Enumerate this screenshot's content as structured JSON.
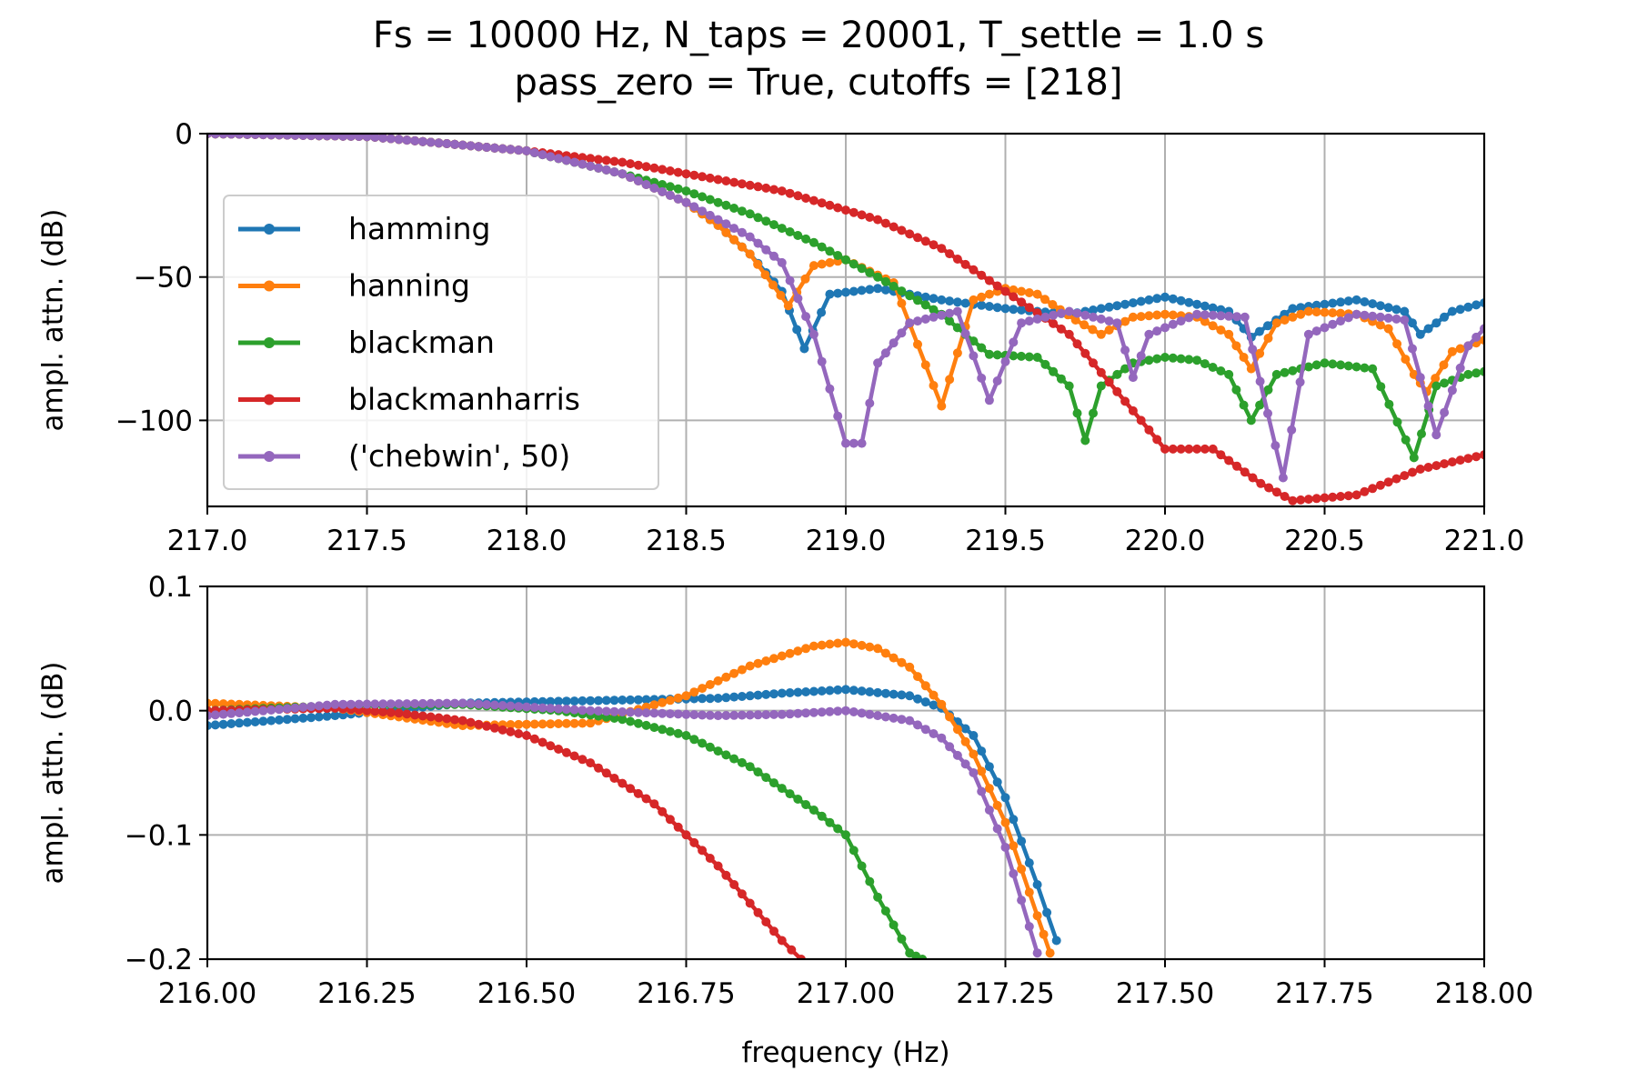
{
  "title": {
    "line1": "Fs = 10000 Hz, N_taps = 20001, T_settle = 1.0 s",
    "line2": "pass_zero = True, cutoffs = [218]"
  },
  "colors": {
    "hamming": "#1f77b4",
    "hanning": "#ff7f0e",
    "blackman": "#2ca02c",
    "blackmanharris": "#d62728",
    "chebwin": "#9467bd"
  },
  "chart_data": [
    {
      "type": "line",
      "ylabel": "ampl. attn. (dB)",
      "xlabel": "",
      "xlim": [
        217.0,
        221.0
      ],
      "ylim": [
        -130,
        0
      ],
      "xticks": [
        "217.0",
        "217.5",
        "218.0",
        "218.5",
        "219.0",
        "219.5",
        "220.0",
        "220.5",
        "221.0"
      ],
      "yticks": [
        "0",
        "−50",
        "−100"
      ],
      "ytick_values": [
        0,
        -50,
        -100
      ],
      "grid": true,
      "legend": "left",
      "series": [
        {
          "name": "hamming",
          "x": [
            217.0,
            217.5,
            218.0,
            218.3,
            218.5,
            218.6,
            218.7,
            218.8,
            218.87,
            218.95,
            219.1,
            219.3,
            219.5,
            219.7,
            219.85,
            220.0,
            220.2,
            220.27,
            220.4,
            220.6,
            220.75,
            220.8,
            220.9,
            221.0
          ],
          "y": [
            0,
            -1,
            -6,
            -14,
            -24,
            -32,
            -42,
            -55,
            -75,
            -56,
            -54,
            -58,
            -61,
            -63,
            -60,
            -57,
            -62,
            -71,
            -61,
            -58,
            -62,
            -70,
            -62,
            -59
          ]
        },
        {
          "name": "hanning",
          "x": [
            217.0,
            217.5,
            218.0,
            218.3,
            218.5,
            218.6,
            218.7,
            218.82,
            218.9,
            219.0,
            219.15,
            219.3,
            219.4,
            219.5,
            219.6,
            219.72,
            219.8,
            219.9,
            220.0,
            220.1,
            220.2,
            220.27,
            220.35,
            220.45,
            220.6,
            220.7,
            220.78,
            220.82,
            220.9,
            221.0
          ],
          "y": [
            0,
            -1,
            -6,
            -14,
            -24,
            -32,
            -42,
            -60,
            -46,
            -44,
            -52,
            -95,
            -58,
            -54,
            -56,
            -65,
            -70,
            -64,
            -63,
            -64,
            -70,
            -82,
            -66,
            -62,
            -63,
            -68,
            -84,
            -90,
            -76,
            -72
          ]
        },
        {
          "name": "blackman",
          "x": [
            217.0,
            217.5,
            218.0,
            218.3,
            218.5,
            218.7,
            218.9,
            219.1,
            219.3,
            219.45,
            219.6,
            219.7,
            219.75,
            219.8,
            219.9,
            220.0,
            220.1,
            220.2,
            220.27,
            220.35,
            220.5,
            220.65,
            220.78,
            220.85,
            220.95,
            221.0
          ],
          "y": [
            0,
            -1,
            -6,
            -14,
            -20,
            -28,
            -38,
            -50,
            -63,
            -77,
            -78,
            -88,
            -107,
            -88,
            -80,
            -78,
            -79,
            -84,
            -100,
            -84,
            -80,
            -82,
            -113,
            -88,
            -84,
            -83
          ]
        },
        {
          "name": "blackmanharris",
          "x": [
            217.0,
            217.5,
            218.0,
            218.3,
            218.5,
            218.8,
            219.1,
            219.3,
            219.5,
            219.7,
            219.85,
            220.0,
            220.15,
            220.3,
            220.4,
            220.6,
            220.8,
            221.0
          ],
          "y": [
            0,
            -1,
            -6,
            -10,
            -14,
            -20,
            -30,
            -40,
            -55,
            -70,
            -90,
            -110,
            -110,
            -122,
            -128,
            -126,
            -117,
            -112
          ]
        },
        {
          "name": "('chebwin', 50)",
          "x": [
            217.0,
            217.5,
            218.0,
            218.3,
            218.5,
            218.7,
            218.8,
            218.9,
            219.0,
            219.05,
            219.1,
            219.2,
            219.35,
            219.45,
            219.55,
            219.7,
            219.85,
            219.9,
            219.95,
            220.1,
            220.25,
            220.37,
            220.45,
            220.6,
            220.75,
            220.85,
            220.95,
            221.0
          ],
          "y": [
            0,
            -1,
            -6,
            -14,
            -24,
            -36,
            -45,
            -70,
            -108,
            -108,
            -80,
            -66,
            -62,
            -93,
            -66,
            -62,
            -66,
            -85,
            -70,
            -63,
            -64,
            -120,
            -70,
            -63,
            -65,
            -105,
            -74,
            -68
          ]
        }
      ]
    },
    {
      "type": "line",
      "ylabel": "ampl. attn. (dB)",
      "xlabel": "frequency (Hz)",
      "xlim": [
        216.0,
        218.0
      ],
      "ylim": [
        -0.2,
        0.1
      ],
      "xticks": [
        "216.00",
        "216.25",
        "216.50",
        "216.75",
        "217.00",
        "217.25",
        "217.50",
        "217.75",
        "218.00"
      ],
      "yticks": [
        "0.1",
        "0.0",
        "−0.1",
        "−0.2"
      ],
      "ytick_values": [
        0.1,
        0.0,
        -0.1,
        -0.2
      ],
      "grid": true,
      "series": [
        {
          "name": "hamming",
          "x": [
            216.0,
            216.2,
            216.4,
            216.6,
            216.8,
            216.9,
            217.0,
            217.1,
            217.15,
            217.2,
            217.25,
            217.3,
            217.33
          ],
          "y": [
            -0.012,
            -0.004,
            0.006,
            0.008,
            0.01,
            0.014,
            0.017,
            0.012,
            0.002,
            -0.02,
            -0.07,
            -0.14,
            -0.185
          ]
        },
        {
          "name": "hanning",
          "x": [
            216.0,
            216.2,
            216.4,
            216.6,
            216.75,
            216.85,
            216.95,
            217.0,
            217.05,
            217.1,
            217.15,
            217.2,
            217.25,
            217.3,
            217.32
          ],
          "y": [
            0.006,
            0.002,
            -0.012,
            -0.01,
            0.012,
            0.036,
            0.052,
            0.055,
            0.05,
            0.035,
            0.005,
            -0.035,
            -0.09,
            -0.165,
            -0.195
          ]
        },
        {
          "name": "blackman",
          "x": [
            216.0,
            216.2,
            216.4,
            216.55,
            216.65,
            216.75,
            216.85,
            216.95,
            217.0,
            217.05,
            217.1,
            217.12
          ],
          "y": [
            0.0,
            0.004,
            0.005,
            0.0,
            -0.007,
            -0.02,
            -0.045,
            -0.08,
            -0.1,
            -0.15,
            -0.195,
            -0.2
          ]
        },
        {
          "name": "blackmanharris",
          "x": [
            216.0,
            216.2,
            216.3,
            216.4,
            216.5,
            216.6,
            216.7,
            216.8,
            216.9,
            216.93
          ],
          "y": [
            0.0,
            0.002,
            -0.002,
            -0.008,
            -0.02,
            -0.042,
            -0.075,
            -0.125,
            -0.185,
            -0.2
          ]
        },
        {
          "name": "('chebwin', 50)",
          "x": [
            216.0,
            216.2,
            216.4,
            216.6,
            216.8,
            216.9,
            217.0,
            217.1,
            217.15,
            217.2,
            217.25,
            217.3
          ],
          "y": [
            -0.004,
            0.005,
            0.006,
            0.0,
            -0.004,
            -0.003,
            0.0,
            -0.008,
            -0.022,
            -0.05,
            -0.11,
            -0.195
          ]
        }
      ]
    }
  ]
}
